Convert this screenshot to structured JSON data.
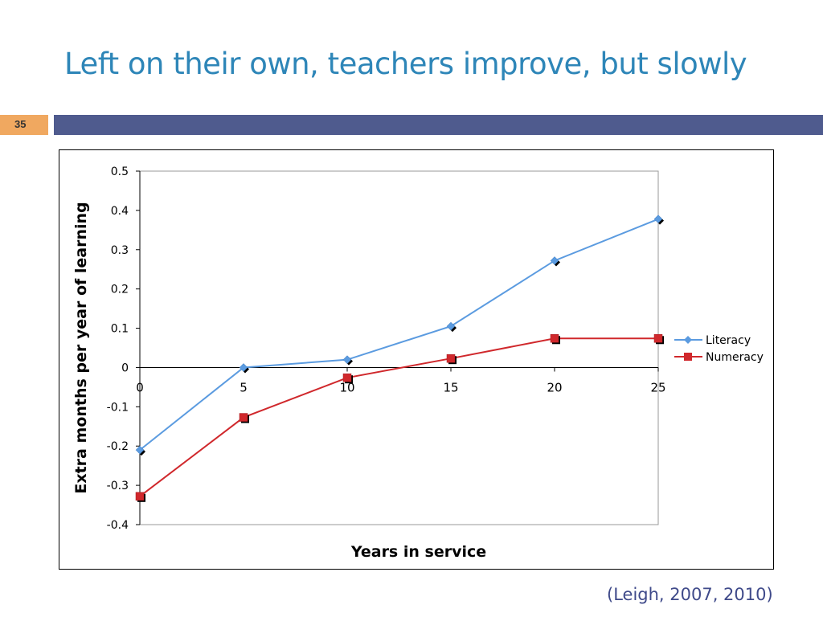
{
  "slide": {
    "title": "Left on their own, teachers improve, but slowly",
    "number": "35",
    "citation": "(Leigh, 2007, 2010)"
  },
  "colors": {
    "title": "#2E86B8",
    "number_box": "#F0A860",
    "band": "#4F5B8E",
    "citation": "#3F4A8A"
  },
  "chart_data": {
    "type": "line",
    "title": "",
    "xlabel": "Years in service",
    "ylabel": "Extra months per year of learning",
    "xlim": [
      0,
      25
    ],
    "ylim": [
      -0.4,
      0.5
    ],
    "x_ticks": [
      "0",
      "5",
      "10",
      "15",
      "20",
      "25"
    ],
    "x_tick_values": [
      0,
      5,
      10,
      15,
      20,
      25
    ],
    "y_ticks": [
      "0.5",
      "0.4",
      "0.3",
      "0.2",
      "0.1",
      "0",
      "-0.1",
      "-0.2",
      "-0.3",
      "-0.4"
    ],
    "y_tick_values": [
      0.5,
      0.4,
      0.3,
      0.2,
      0.1,
      0,
      -0.1,
      -0.2,
      -0.3,
      -0.4
    ],
    "x": [
      0,
      5,
      10,
      15,
      20,
      25
    ],
    "series": [
      {
        "name": "Literacy",
        "values": [
          -0.21,
          0.0,
          0.02,
          0.105,
          0.272,
          0.378
        ],
        "color": "#5B9BE0",
        "marker": "diamond"
      },
      {
        "name": "Numeracy",
        "values": [
          -0.328,
          -0.127,
          -0.026,
          0.023,
          0.074,
          0.074
        ],
        "color": "#D0282C",
        "marker": "square"
      }
    ],
    "grid": false,
    "legend_position": "right"
  }
}
